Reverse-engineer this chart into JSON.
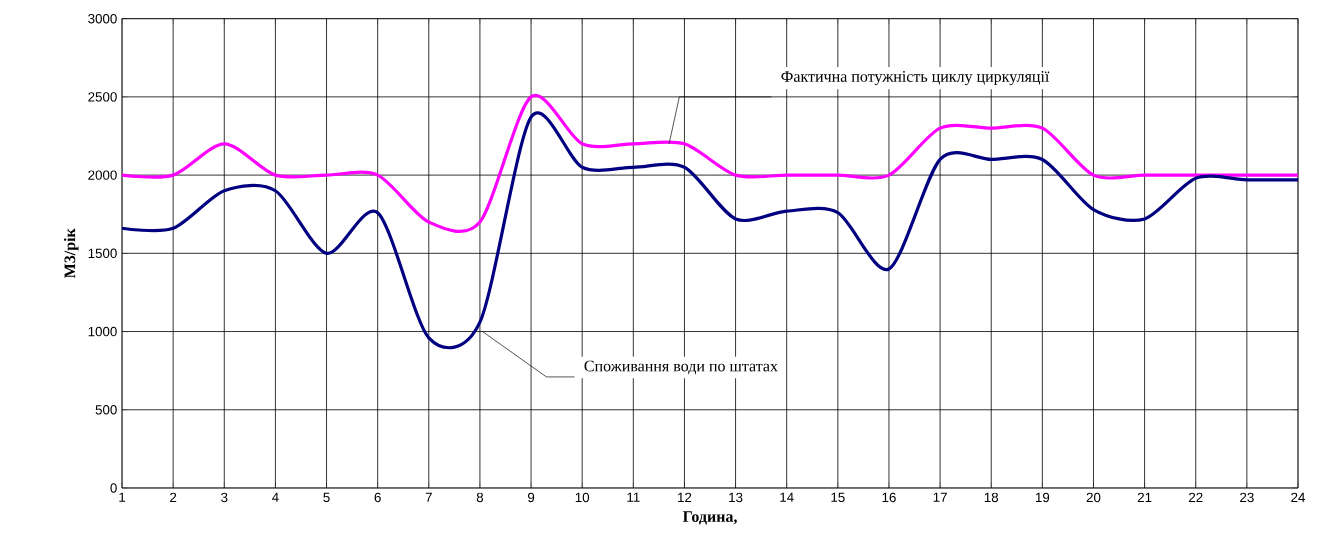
{
  "chart_data": {
    "type": "line",
    "xlabel": "Година,",
    "ylabel": "М3/рік",
    "x": [
      1,
      2,
      3,
      4,
      5,
      6,
      7,
      8,
      9,
      10,
      11,
      12,
      13,
      14,
      15,
      16,
      17,
      18,
      19,
      20,
      21,
      22,
      23,
      24
    ],
    "series": [
      {
        "name": "Фактична потужність циклу циркуляції",
        "color": "#ff00ff",
        "values": [
          2000,
          2000,
          2200,
          2000,
          2000,
          2000,
          1700,
          1700,
          2500,
          2200,
          2200,
          2200,
          2000,
          2000,
          2000,
          2000,
          2300,
          2300,
          2300,
          2000,
          2000,
          2000,
          2000,
          2000
        ]
      },
      {
        "name": "Споживання води по штатах",
        "color": "#000080",
        "values": [
          1660,
          1660,
          1900,
          1900,
          1500,
          1760,
          960,
          1060,
          2370,
          2050,
          2050,
          2050,
          1720,
          1770,
          1760,
          1400,
          2100,
          2100,
          2100,
          1780,
          1720,
          1980,
          1970,
          1970
        ]
      }
    ],
    "xlim": [
      1,
      24
    ],
    "xticks": [
      1,
      2,
      3,
      4,
      5,
      6,
      7,
      8,
      9,
      10,
      11,
      12,
      13,
      14,
      15,
      16,
      17,
      18,
      19,
      20,
      21,
      22,
      23,
      24
    ],
    "ylim": [
      0,
      3000
    ],
    "yticks": [
      0,
      500,
      1000,
      1500,
      2000,
      2500,
      3000
    ],
    "grid": true,
    "marker": "none",
    "line_style": "solid"
  }
}
